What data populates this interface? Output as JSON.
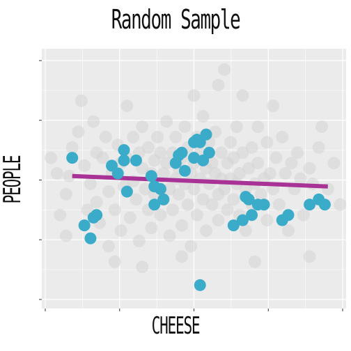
{
  "chart_data": {
    "type": "scatter",
    "title": "Random Sample",
    "xlabel": "CHEESE",
    "ylabel": "PEOPLE",
    "grid": true,
    "xlim": [
      0,
      100
    ],
    "ylim": [
      0,
      100
    ],
    "colors": {
      "panel": "#ebebeb",
      "grid": "#ffffff",
      "background_points": "#d3d3d3",
      "sample_points": "#3aacc9",
      "trend_line": "#a83295"
    },
    "background_points": [
      [
        5,
        52
      ],
      [
        8,
        28
      ],
      [
        8,
        44
      ],
      [
        9,
        51
      ],
      [
        10,
        62
      ],
      [
        12,
        68
      ],
      [
        14,
        55
      ],
      [
        15,
        38
      ],
      [
        16,
        48
      ],
      [
        17,
        72
      ],
      [
        18,
        41
      ],
      [
        18,
        60
      ],
      [
        19,
        33
      ],
      [
        20,
        58
      ],
      [
        21,
        66
      ],
      [
        22,
        45
      ],
      [
        22,
        24
      ],
      [
        23,
        52
      ],
      [
        24,
        38
      ],
      [
        25,
        63
      ],
      [
        26,
        56
      ],
      [
        26,
        30
      ],
      [
        27,
        47
      ],
      [
        28,
        58
      ],
      [
        28,
        78
      ],
      [
        29,
        35
      ],
      [
        30,
        66
      ],
      [
        30,
        49
      ],
      [
        31,
        42
      ],
      [
        32,
        60
      ],
      [
        32,
        26
      ],
      [
        33,
        54
      ],
      [
        33,
        70
      ],
      [
        34,
        46
      ],
      [
        35,
        38
      ],
      [
        35,
        62
      ],
      [
        36,
        52
      ],
      [
        36,
        31
      ],
      [
        37,
        57
      ],
      [
        37,
        44
      ],
      [
        38,
        66
      ],
      [
        38,
        48
      ],
      [
        39,
        36
      ],
      [
        39,
        60
      ],
      [
        40,
        52
      ],
      [
        40,
        42
      ],
      [
        41,
        72
      ],
      [
        41,
        56
      ],
      [
        42,
        46
      ],
      [
        42,
        28
      ],
      [
        43,
        60
      ],
      [
        43,
        38
      ],
      [
        44,
        50
      ],
      [
        44,
        66
      ],
      [
        45,
        44
      ],
      [
        45,
        54
      ],
      [
        46,
        58
      ],
      [
        46,
        32
      ],
      [
        47,
        48
      ],
      [
        47,
        70
      ],
      [
        48,
        40
      ],
      [
        48,
        62
      ],
      [
        49,
        52
      ],
      [
        49,
        24
      ],
      [
        50,
        56
      ],
      [
        50,
        46
      ],
      [
        51,
        66
      ],
      [
        51,
        36
      ],
      [
        52,
        50
      ],
      [
        52,
        60
      ],
      [
        53,
        42
      ],
      [
        53,
        74
      ],
      [
        54,
        54
      ],
      [
        54,
        30
      ],
      [
        55,
        48
      ],
      [
        55,
        64
      ],
      [
        56,
        40
      ],
      [
        56,
        56
      ],
      [
        57,
        52
      ],
      [
        57,
        68
      ],
      [
        58,
        44
      ],
      [
        58,
        34
      ],
      [
        59,
        60
      ],
      [
        59,
        50
      ],
      [
        60,
        46
      ],
      [
        60,
        92
      ],
      [
        61,
        56
      ],
      [
        61,
        38
      ],
      [
        62,
        64
      ],
      [
        62,
        50
      ],
      [
        63,
        42
      ],
      [
        63,
        58
      ],
      [
        64,
        48
      ],
      [
        64,
        70
      ],
      [
        65,
        52
      ],
      [
        65,
        36
      ],
      [
        66,
        60
      ],
      [
        67,
        46
      ],
      [
        67,
        30
      ],
      [
        68,
        54
      ],
      [
        69,
        62
      ],
      [
        69,
        40
      ],
      [
        70,
        48
      ],
      [
        71,
        70
      ],
      [
        71,
        56
      ],
      [
        72,
        44
      ],
      [
        73,
        50
      ],
      [
        74,
        34
      ],
      [
        74,
        64
      ],
      [
        75,
        52
      ],
      [
        76,
        46
      ],
      [
        77,
        58
      ],
      [
        78,
        40
      ],
      [
        79,
        66
      ],
      [
        80,
        52
      ],
      [
        81,
        30
      ],
      [
        82,
        56
      ],
      [
        83,
        46
      ],
      [
        84,
        60
      ],
      [
        85,
        50
      ],
      [
        86,
        36
      ],
      [
        88,
        54
      ],
      [
        89,
        48
      ],
      [
        91,
        62
      ],
      [
        94,
        46
      ],
      [
        96,
        56
      ],
      [
        6,
        36
      ],
      [
        13,
        80
      ],
      [
        88,
        20
      ],
      [
        70,
        18
      ],
      [
        46,
        20
      ],
      [
        33,
        16
      ],
      [
        58,
        86
      ],
      [
        76,
        78
      ],
      [
        66,
        82
      ],
      [
        24,
        18
      ],
      [
        98,
        40
      ],
      [
        92,
        70
      ],
      [
        3,
        58
      ],
      [
        50,
        82
      ]
    ],
    "sample_points": [
      [
        10,
        58
      ],
      [
        23,
        55
      ],
      [
        25,
        52
      ],
      [
        27,
        61
      ],
      [
        28,
        45
      ],
      [
        27,
        57
      ],
      [
        31,
        57
      ],
      [
        36,
        51
      ],
      [
        37,
        40
      ],
      [
        37,
        47
      ],
      [
        39,
        46
      ],
      [
        40,
        42
      ],
      [
        44,
        56
      ],
      [
        45,
        59
      ],
      [
        47,
        53
      ],
      [
        51,
        65
      ],
      [
        52,
        64
      ],
      [
        53,
        57
      ],
      [
        54,
        67
      ],
      [
        55,
        60
      ],
      [
        67,
        43
      ],
      [
        68,
        42
      ],
      [
        69,
        36
      ],
      [
        71,
        40
      ],
      [
        73,
        40
      ],
      [
        79,
        34
      ],
      [
        81,
        36
      ],
      [
        88,
        40
      ],
      [
        91,
        42
      ],
      [
        93,
        40
      ],
      [
        14,
        32
      ],
      [
        16,
        27
      ],
      [
        17,
        35
      ],
      [
        18,
        36
      ],
      [
        63,
        32
      ],
      [
        66,
        34
      ],
      [
        46,
        60
      ],
      [
        50,
        58
      ],
      [
        52,
        9
      ],
      [
        50,
        64
      ]
    ],
    "trend_line": {
      "x": [
        10,
        94
      ],
      "y": [
        51,
        47
      ]
    }
  }
}
